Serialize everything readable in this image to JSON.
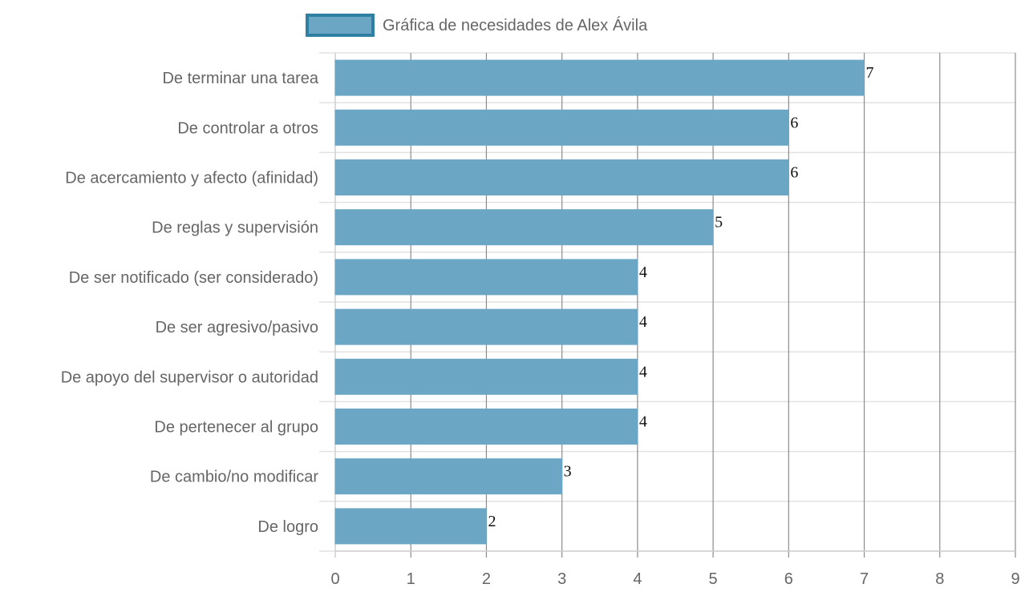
{
  "chart_data": {
    "type": "bar",
    "orientation": "horizontal",
    "categories": [
      "De terminar una tarea",
      "De controlar a otros",
      "De acercamiento y afecto (afinidad)",
      "De reglas y supervisión",
      "De ser notificado (ser considerado)",
      "De ser agresivo/pasivo",
      "De apoyo del supervisor o autoridad",
      "De pertenecer al grupo",
      "De cambio/no modificar",
      "De logro"
    ],
    "series": [
      {
        "name": "Gráfica de necesidades de Alex Ávila",
        "values": [
          7,
          6,
          6,
          5,
          4,
          4,
          4,
          4,
          3,
          2
        ],
        "fill_color": "#6ba6c5",
        "border_color": "#2f7fa3"
      }
    ],
    "xlim": [
      0,
      9
    ],
    "x_ticks": [
      "0",
      "1",
      "2",
      "3",
      "4",
      "5",
      "6",
      "7",
      "8",
      "9"
    ],
    "data_labels": [
      "7",
      "6",
      "6",
      "5",
      "4",
      "4",
      "4",
      "4",
      "3",
      "2"
    ],
    "legend_position": "top",
    "grid": true
  }
}
